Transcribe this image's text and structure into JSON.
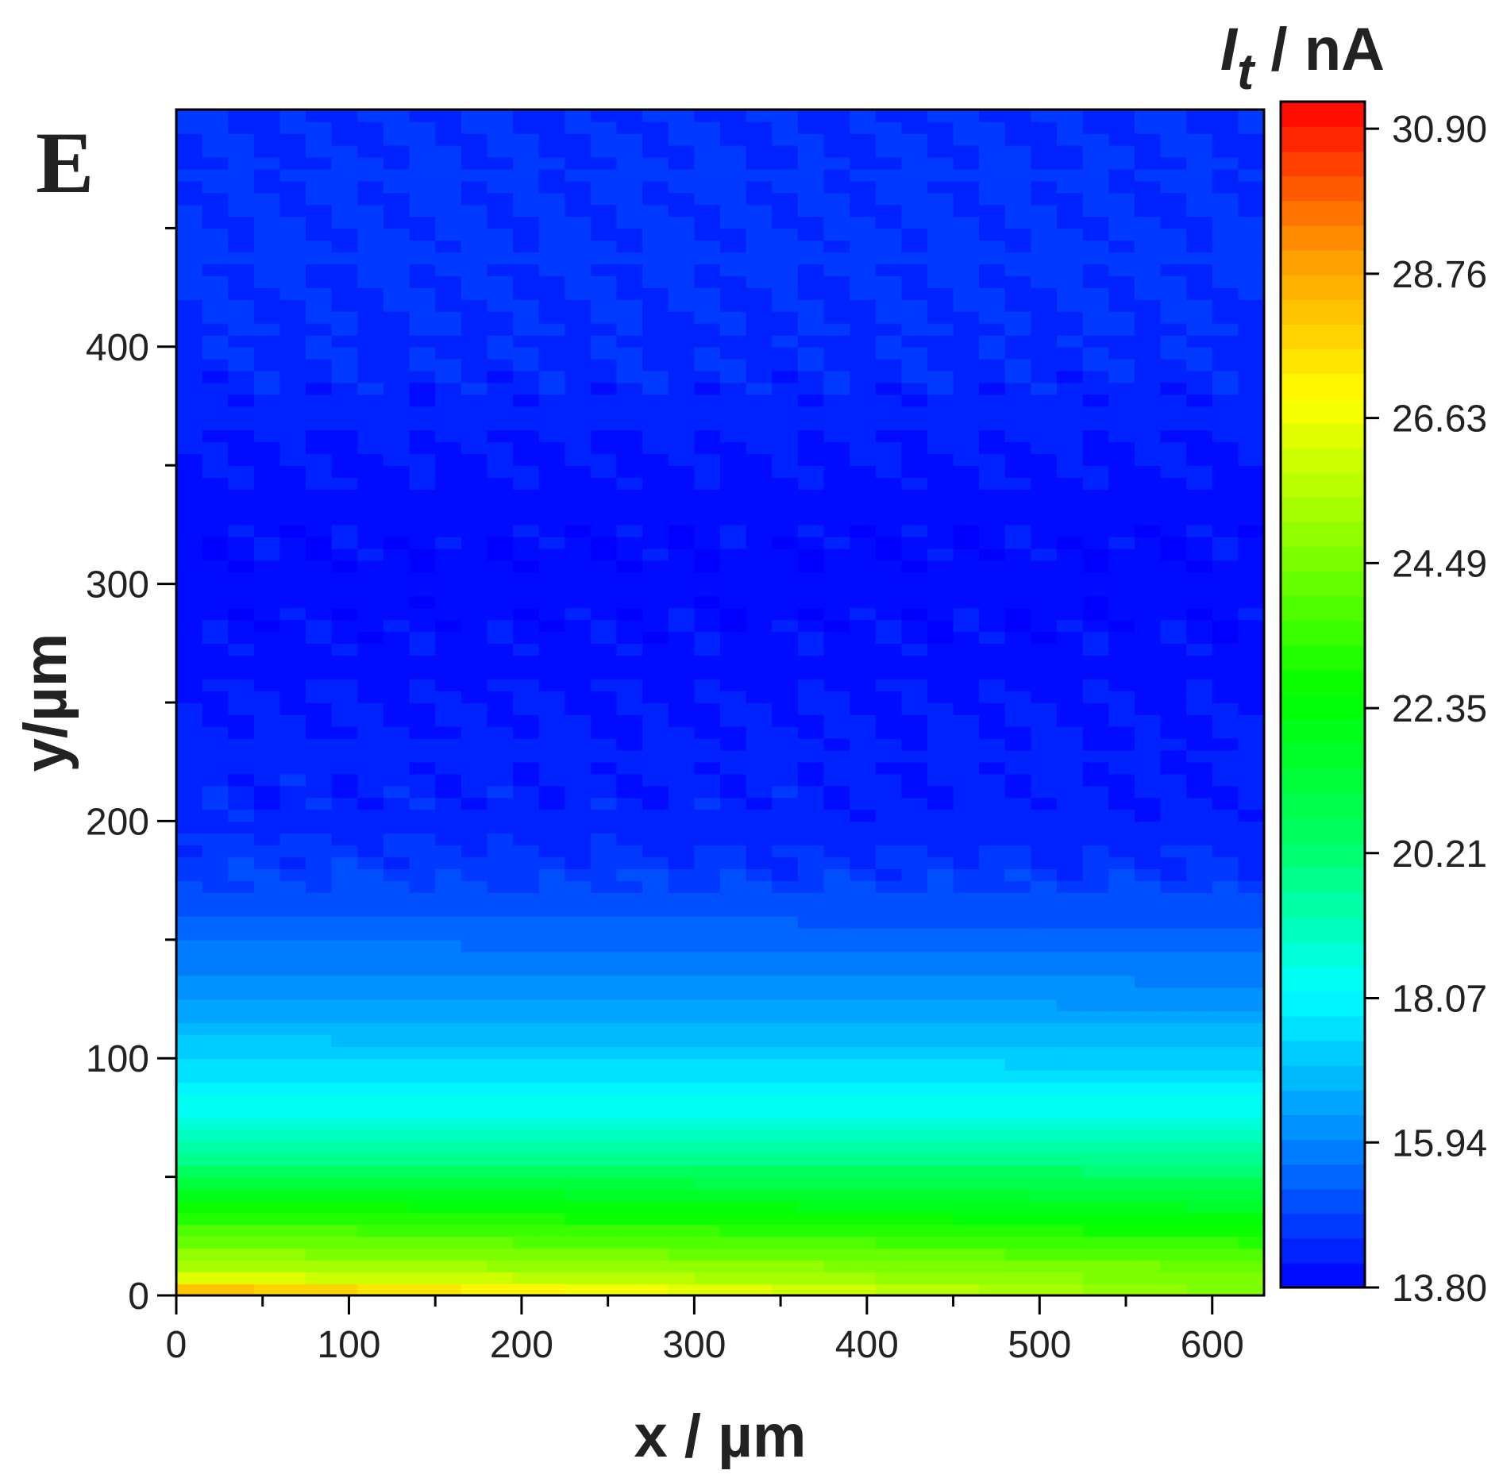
{
  "chart_data": {
    "type": "heatmap",
    "panel_label": "E",
    "xlabel": "x / µm",
    "ylabel": "y/µm",
    "colorbar_label": {
      "var": "I",
      "sub": "t",
      "unit": " / nA"
    },
    "xlim": [
      0,
      630
    ],
    "ylim": [
      0,
      500
    ],
    "x_ticks": [
      0,
      100,
      200,
      300,
      400,
      500,
      600
    ],
    "x_tick_labels": [
      "0",
      "100",
      "200",
      "300",
      "400",
      "500",
      "600"
    ],
    "y_ticks": [
      0,
      100,
      200,
      300,
      400
    ],
    "y_tick_labels": [
      "0",
      "100",
      "200",
      "300",
      "400"
    ],
    "colorbar_range": [
      13.8,
      31.3
    ],
    "colorbar_ticks": [
      13.8,
      15.94,
      18.07,
      20.21,
      22.35,
      24.49,
      26.63,
      28.76,
      30.9
    ],
    "colorbar_tick_labels": [
      "13.80",
      "15.94",
      "18.07",
      "20.21",
      "22.35",
      "24.49",
      "26.63",
      "28.76",
      "30.90"
    ],
    "colorscale": [
      "#0000ff",
      "#0088ff",
      "#00ffff",
      "#00ff66",
      "#00ff00",
      "#88ff00",
      "#ffff00",
      "#ff9900",
      "#ff0000"
    ],
    "current_profile_y": [
      0,
      5,
      12,
      20,
      40,
      60,
      80,
      100,
      120,
      140,
      160,
      180,
      200,
      250,
      300,
      350,
      400,
      450,
      500
    ],
    "current_profile_nA_x0": [
      29.5,
      27.0,
      25.5,
      24.6,
      22.5,
      19.5,
      18.3,
      17.4,
      16.6,
      15.9,
      15.3,
      14.8,
      14.4,
      14.2,
      13.9,
      14.1,
      14.5,
      14.6,
      14.5
    ],
    "current_profile_nA_x630": [
      24.6,
      24.4,
      24.3,
      23.5,
      21.5,
      19.6,
      18.3,
      17.3,
      16.4,
      15.7,
      15.1,
      14.6,
      14.3,
      14.1,
      13.9,
      14.1,
      14.5,
      14.6,
      14.5
    ]
  }
}
